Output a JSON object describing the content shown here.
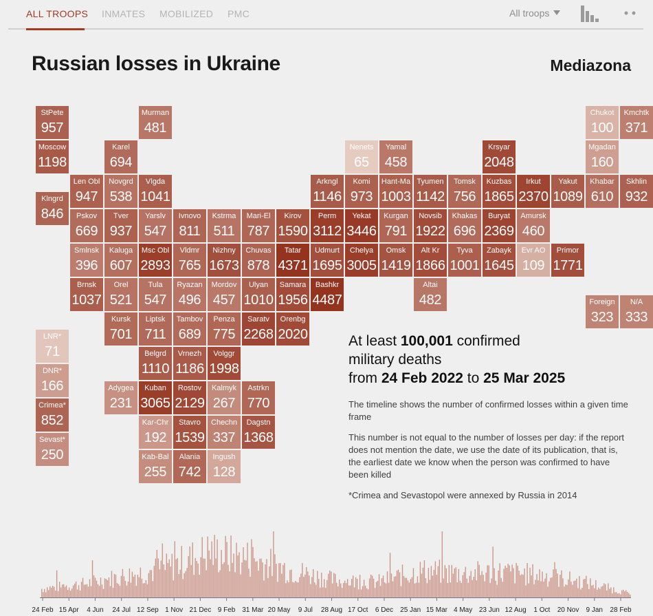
{
  "nav": {
    "tabs": [
      {
        "label": "ALL TROOPS",
        "active": true
      },
      {
        "label": "INMATES",
        "active": false
      },
      {
        "label": "MOBILIZED",
        "active": false
      },
      {
        "label": "PMC",
        "active": false
      }
    ],
    "filter_label": "All troops",
    "chart_icon": "bar-chart-icon",
    "more_icon": "more-dots-icon"
  },
  "header": {
    "title": "Russian losses in Ukraine",
    "brand": "Mediazona"
  },
  "colors": {
    "accent": "#a23a24",
    "dark": "#9c3e2a",
    "light": "#ead3ca"
  },
  "tiles": [
    {
      "name": "StPete",
      "value": "957",
      "row": 0,
      "col": 0
    },
    {
      "name": "Murman",
      "value": "481",
      "row": 0,
      "col": 3
    },
    {
      "name": "Chukot",
      "value": "100",
      "row": 0,
      "col": 16
    },
    {
      "name": "Kmchtk",
      "value": "371",
      "row": 0,
      "col": 17
    },
    {
      "name": "Moscow",
      "value": "1198",
      "row": 1,
      "col": 0
    },
    {
      "name": "Karel",
      "value": "694",
      "row": 1,
      "col": 2
    },
    {
      "name": "Nenets",
      "value": "65",
      "row": 1,
      "col": 9
    },
    {
      "name": "Yamal",
      "value": "458",
      "row": 1,
      "col": 10
    },
    {
      "name": "Krsyar",
      "value": "2048",
      "row": 1,
      "col": 13
    },
    {
      "name": "Mgadan",
      "value": "160",
      "row": 1,
      "col": 16
    },
    {
      "name": "Len Obl",
      "value": "947",
      "row": 2,
      "col": 1
    },
    {
      "name": "Novgrd",
      "value": "538",
      "row": 2,
      "col": 2
    },
    {
      "name": "Vlgda",
      "value": "1041",
      "row": 2,
      "col": 3
    },
    {
      "name": "Arkngl",
      "value": "1146",
      "row": 2,
      "col": 8
    },
    {
      "name": "Komi",
      "value": "973",
      "row": 2,
      "col": 9
    },
    {
      "name": "Hant-Ma",
      "value": "1003",
      "row": 2,
      "col": 10
    },
    {
      "name": "Tyumen",
      "value": "1142",
      "row": 2,
      "col": 11
    },
    {
      "name": "Tomsk",
      "value": "756",
      "row": 2,
      "col": 12
    },
    {
      "name": "Kuzbas",
      "value": "1865",
      "row": 2,
      "col": 13
    },
    {
      "name": "Irkut",
      "value": "2370",
      "row": 2,
      "col": 14
    },
    {
      "name": "Yakut",
      "value": "1089",
      "row": 2,
      "col": 15
    },
    {
      "name": "Khabar",
      "value": "610",
      "row": 2,
      "col": 16
    },
    {
      "name": "Skhlin",
      "value": "932",
      "row": 2,
      "col": 17
    },
    {
      "name": "Klngrd",
      "value": "846",
      "row": 2.5,
      "col": 0
    },
    {
      "name": "Pskov",
      "value": "669",
      "row": 3,
      "col": 1
    },
    {
      "name": "Tver",
      "value": "937",
      "row": 3,
      "col": 2
    },
    {
      "name": "Yarslv",
      "value": "547",
      "row": 3,
      "col": 3
    },
    {
      "name": "Ivnovo",
      "value": "811",
      "row": 3,
      "col": 4
    },
    {
      "name": "Kstrma",
      "value": "511",
      "row": 3,
      "col": 5
    },
    {
      "name": "Mari-El",
      "value": "787",
      "row": 3,
      "col": 6
    },
    {
      "name": "Kirov",
      "value": "1590",
      "row": 3,
      "col": 7
    },
    {
      "name": "Perm",
      "value": "3112",
      "row": 3,
      "col": 8
    },
    {
      "name": "Yekat",
      "value": "3446",
      "row": 3,
      "col": 9
    },
    {
      "name": "Kurgan",
      "value": "791",
      "row": 3,
      "col": 10
    },
    {
      "name": "Novsib",
      "value": "1922",
      "row": 3,
      "col": 11
    },
    {
      "name": "Khakas",
      "value": "696",
      "row": 3,
      "col": 12
    },
    {
      "name": "Buryat",
      "value": "2369",
      "row": 3,
      "col": 13
    },
    {
      "name": "Amursk",
      "value": "460",
      "row": 3,
      "col": 14
    },
    {
      "name": "Smlnsk",
      "value": "396",
      "row": 4,
      "col": 1
    },
    {
      "name": "Kaluga",
      "value": "607",
      "row": 4,
      "col": 2
    },
    {
      "name": "Msc Obl",
      "value": "2893",
      "row": 4,
      "col": 3
    },
    {
      "name": "Vldmr",
      "value": "765",
      "row": 4,
      "col": 4
    },
    {
      "name": "Nizhny",
      "value": "1673",
      "row": 4,
      "col": 5
    },
    {
      "name": "Chuvas",
      "value": "878",
      "row": 4,
      "col": 6
    },
    {
      "name": "Tatar",
      "value": "4371",
      "row": 4,
      "col": 7
    },
    {
      "name": "Udmurt",
      "value": "1695",
      "row": 4,
      "col": 8
    },
    {
      "name": "Chelya",
      "value": "3005",
      "row": 4,
      "col": 9
    },
    {
      "name": "Omsk",
      "value": "1419",
      "row": 4,
      "col": 10
    },
    {
      "name": "Alt Kr",
      "value": "1866",
      "row": 4,
      "col": 11
    },
    {
      "name": "Tyva",
      "value": "1001",
      "row": 4,
      "col": 12
    },
    {
      "name": "Zabayk",
      "value": "1645",
      "row": 4,
      "col": 13
    },
    {
      "name": "Evr AO",
      "value": "109",
      "row": 4,
      "col": 14
    },
    {
      "name": "Primor",
      "value": "1771",
      "row": 4,
      "col": 15
    },
    {
      "name": "Brnsk",
      "value": "1037",
      "row": 5,
      "col": 1
    },
    {
      "name": "Orel",
      "value": "521",
      "row": 5,
      "col": 2
    },
    {
      "name": "Tula",
      "value": "547",
      "row": 5,
      "col": 3
    },
    {
      "name": "Ryazan",
      "value": "496",
      "row": 5,
      "col": 4
    },
    {
      "name": "Mordov",
      "value": "457",
      "row": 5,
      "col": 5
    },
    {
      "name": "Ulyan",
      "value": "1010",
      "row": 5,
      "col": 6
    },
    {
      "name": "Samara",
      "value": "1956",
      "row": 5,
      "col": 7
    },
    {
      "name": "Bashkr",
      "value": "4487",
      "row": 5,
      "col": 8
    },
    {
      "name": "Altai",
      "value": "482",
      "row": 5,
      "col": 11
    },
    {
      "name": "Foreign",
      "value": "323",
      "row": 5.5,
      "col": 16
    },
    {
      "name": "N/A",
      "value": "333",
      "row": 5.5,
      "col": 17
    },
    {
      "name": "Kursk",
      "value": "701",
      "row": 6,
      "col": 2
    },
    {
      "name": "Liptsk",
      "value": "711",
      "row": 6,
      "col": 3
    },
    {
      "name": "Tambov",
      "value": "689",
      "row": 6,
      "col": 4
    },
    {
      "name": "Penza",
      "value": "775",
      "row": 6,
      "col": 5
    },
    {
      "name": "Saratv",
      "value": "2268",
      "row": 6,
      "col": 6
    },
    {
      "name": "Orenbg",
      "value": "2020",
      "row": 6,
      "col": 7
    },
    {
      "name": "LNR*",
      "value": "71",
      "row": 6.5,
      "col": 0
    },
    {
      "name": "Belgrd",
      "value": "1110",
      "row": 7,
      "col": 3
    },
    {
      "name": "Vrnezh",
      "value": "1186",
      "row": 7,
      "col": 4
    },
    {
      "name": "Volggr",
      "value": "1998",
      "row": 7,
      "col": 5
    },
    {
      "name": "DNR*",
      "value": "166",
      "row": 7.5,
      "col": 0
    },
    {
      "name": "Adygea",
      "value": "231",
      "row": 8,
      "col": 2
    },
    {
      "name": "Kuban",
      "value": "3065",
      "row": 8,
      "col": 3
    },
    {
      "name": "Rostov",
      "value": "2129",
      "row": 8,
      "col": 4
    },
    {
      "name": "Kalmyk",
      "value": "267",
      "row": 8,
      "col": 5
    },
    {
      "name": "Astrkn",
      "value": "770",
      "row": 8,
      "col": 6
    },
    {
      "name": "Crimea*",
      "value": "852",
      "row": 8.5,
      "col": 0
    },
    {
      "name": "Kar-Chr",
      "value": "192",
      "row": 9,
      "col": 3
    },
    {
      "name": "Stavro",
      "value": "1539",
      "row": 9,
      "col": 4
    },
    {
      "name": "Chechn",
      "value": "337",
      "row": 9,
      "col": 5
    },
    {
      "name": "Dagstn",
      "value": "1368",
      "row": 9,
      "col": 6
    },
    {
      "name": "Sevast*",
      "value": "250",
      "row": 9.5,
      "col": 0
    },
    {
      "name": "Kab-Bal",
      "value": "255",
      "row": 10,
      "col": 3
    },
    {
      "name": "Alania",
      "value": "742",
      "row": 10,
      "col": 4
    },
    {
      "name": "Ingush",
      "value": "128",
      "row": 10,
      "col": 5
    }
  ],
  "summary": {
    "line1_pre": "At least ",
    "count": "100,001",
    "line1_post": " confirmed",
    "line2": "military deaths",
    "line3_pre": "from ",
    "date_from": "24 Feb 2022",
    "line3_mid": " to ",
    "date_to": "25 Mar 2025",
    "note1": "The timeline shows the number of confirmed losses within a given time frame",
    "note2": "This number is not equal to the number of losses per day: if the report does not mention the date, we use the date of its publication, that is, the earliest date we know when the person was confirmed to have been killed",
    "note3": "*Crimea and Sevastopol were annexed by Russia in 2014"
  },
  "chart_data": {
    "type": "bar",
    "x_labels": [
      "24 Feb",
      "15 Apr",
      "4 Jun",
      "24 Jul",
      "12 Sep",
      "1 Nov",
      "21 Dec",
      "9 Feb",
      "31 Mar",
      "20 May",
      "9 Jul",
      "28 Aug",
      "17 Oct",
      "6 Dec",
      "25 Jan",
      "15 Mar",
      "4 May",
      "23 Jun",
      "12 Aug",
      "1 Oct",
      "20 Nov",
      "9 Jan",
      "28 Feb"
    ],
    "x_range": [
      "24 Feb 2022",
      "25 Mar 2025"
    ],
    "series_profile": [
      {
        "period_start": "24 Feb 2022",
        "relative_level": 0.18
      },
      {
        "period_start": "4 Jun 2022",
        "relative_level": 0.28
      },
      {
        "period_start": "12 Sep 2022",
        "relative_level": 0.45
      },
      {
        "period_start": "1 Nov 2022",
        "relative_level": 0.62
      },
      {
        "period_start": "21 Dec 2022",
        "relative_level": 0.95
      },
      {
        "period_start": "9 Feb 2023",
        "relative_level": 0.8
      },
      {
        "period_start": "31 Mar 2023",
        "relative_level": 0.55
      },
      {
        "period_start": "20 May 2023",
        "relative_level": 0.35
      },
      {
        "period_start": "9 Jul 2023",
        "relative_level": 0.32
      },
      {
        "period_start": "17 Oct 2023",
        "relative_level": 0.55
      },
      {
        "period_start": "25 Jan 2024",
        "relative_level": 0.5
      },
      {
        "period_start": "4 May 2024",
        "relative_level": 0.52
      },
      {
        "period_start": "12 Aug 2024",
        "relative_level": 0.45
      },
      {
        "period_start": "20 Nov 2024",
        "relative_level": 0.3
      },
      {
        "period_start": "28 Feb 2025",
        "relative_level": 0.08
      }
    ]
  }
}
